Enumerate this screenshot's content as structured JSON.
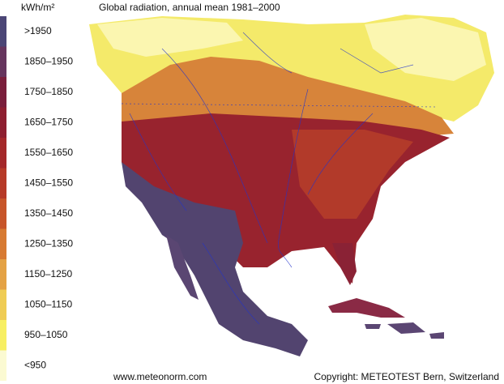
{
  "header": {
    "unit": "kWh/m²",
    "title": "Global radiation, annual mean 1981–2000"
  },
  "legend": {
    "items": [
      {
        "label": ">1950",
        "color": "#4b4676"
      },
      {
        "label": "1850–1950",
        "color": "#66355e"
      },
      {
        "label": "1750–1850",
        "color": "#7a1f3c"
      },
      {
        "label": "1650–1750",
        "color": "#8e1f30"
      },
      {
        "label": "1550–1650",
        "color": "#a4282a"
      },
      {
        "label": "1450–1550",
        "color": "#b63a28"
      },
      {
        "label": "1350–1450",
        "color": "#c7552a"
      },
      {
        "label": "1250–1350",
        "color": "#d77a32"
      },
      {
        "label": "1150–1250",
        "color": "#e4a244"
      },
      {
        "label": "1050–1150",
        "color": "#efcc54"
      },
      {
        "label": "950–1050",
        "color": "#f7ef62"
      },
      {
        "label": "<950",
        "color": "#fbfad2"
      }
    ]
  },
  "footer": {
    "website": "www.meteonorm.com",
    "copyright": "Copyright: METEOTEST Bern, Switzerland"
  }
}
